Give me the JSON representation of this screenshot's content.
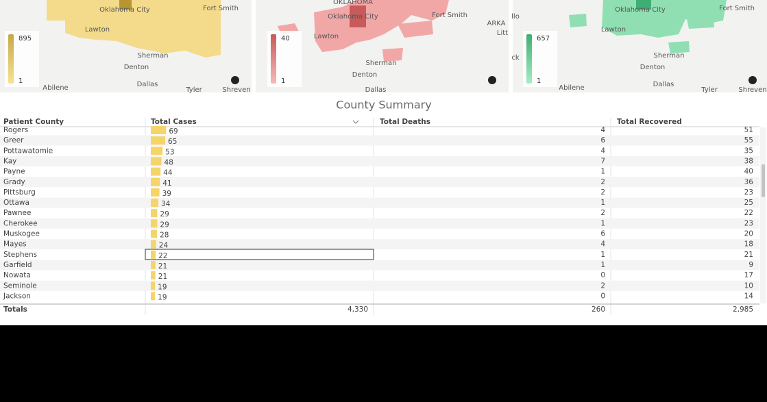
{
  "maps": [
    {
      "labels": [
        "Oklahoma City",
        "Fort Smith",
        "Lawton",
        "Sherman",
        "Denton",
        "Abilene",
        "Dallas",
        "Tyler",
        "Shreven"
      ],
      "legend_max": "895",
      "legend_min": "1"
    },
    {
      "labels": [
        "OKLAHOMA",
        "Oklahoma City",
        "Fort Smith",
        "Lawton",
        "ARKA",
        "Litt",
        "Sherman",
        "Denton",
        "Dallas"
      ],
      "legend_max": "40",
      "legend_min": "1"
    },
    {
      "labels": [
        "llo",
        "ck",
        "Oklahoma City",
        "Fort Smith",
        "Lawton",
        "Sherman",
        "Denton",
        "Abilene",
        "Dallas",
        "Tyler",
        "Shreven"
      ],
      "legend_max": "657",
      "legend_min": "1"
    }
  ],
  "table": {
    "title": "County Summary",
    "headers": [
      "Patient County",
      "Total Cases",
      "Total Deaths",
      "Total Recovered"
    ],
    "rows": [
      [
        "Rogers",
        69,
        4,
        51
      ],
      [
        "Greer",
        65,
        6,
        55
      ],
      [
        "Pottawatomie",
        53,
        4,
        35
      ],
      [
        "Kay",
        48,
        7,
        38
      ],
      [
        "Payne",
        44,
        1,
        40
      ],
      [
        "Grady",
        41,
        2,
        36
      ],
      [
        "Pittsburg",
        39,
        2,
        23
      ],
      [
        "Ottawa",
        34,
        1,
        25
      ],
      [
        "Pawnee",
        29,
        2,
        22
      ],
      [
        "Cherokee",
        29,
        1,
        23
      ],
      [
        "Muskogee",
        28,
        6,
        20
      ],
      [
        "Mayes",
        24,
        4,
        18
      ],
      [
        "Stephens",
        22,
        1,
        21
      ],
      [
        "Garfield",
        21,
        1,
        9
      ],
      [
        "Nowata",
        21,
        0,
        17
      ],
      [
        "Seminole",
        19,
        2,
        10
      ],
      [
        "Jackson",
        19,
        0,
        14
      ]
    ],
    "totals": [
      "Totals",
      "4,330",
      "260",
      "2,985"
    ]
  }
}
